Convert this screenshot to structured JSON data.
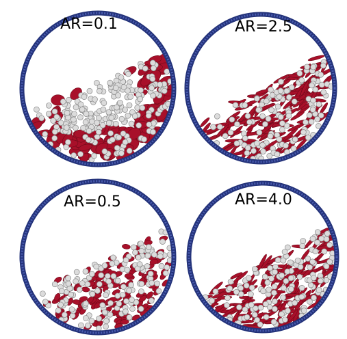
{
  "panels": [
    {
      "label": "AR=0.1"
    },
    {
      "label": "AR=2.5"
    },
    {
      "label": "AR=0.5"
    },
    {
      "label": "AR=4.0"
    }
  ]
}
